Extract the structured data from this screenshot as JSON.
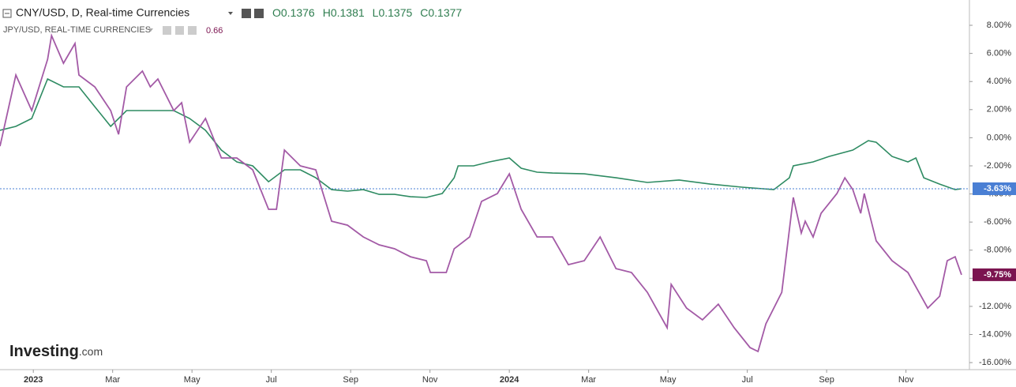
{
  "chart_data": {
    "type": "line",
    "title": "CNY/USD, D, Real-time Currencies",
    "ohlc": [
      "O0.1376",
      "H0.1381",
      "L0.1375",
      "C0.1377"
    ],
    "compare_label": "JPY/USD, REAL-TIME CURRENCIES",
    "compare_value": "0.66",
    "logo": {
      "brand": "Investing",
      "suffix": ".com"
    },
    "xlim": [
      -0.84,
      23.6
    ],
    "xticks": [
      {
        "value": 0,
        "label": "2023"
      },
      {
        "value": 2,
        "label": "Mar"
      },
      {
        "value": 4,
        "label": "May"
      },
      {
        "value": 6,
        "label": "Jul"
      },
      {
        "value": 8,
        "label": "Sep"
      },
      {
        "value": 10,
        "label": "Nov"
      },
      {
        "value": 12,
        "label": "2024"
      },
      {
        "value": 14,
        "label": "Mar"
      },
      {
        "value": 16,
        "label": "May"
      },
      {
        "value": 18,
        "label": "Jul"
      },
      {
        "value": 20,
        "label": "Sep"
      },
      {
        "value": 22,
        "label": "Nov"
      }
    ],
    "ylim": [
      -16.5,
      9.8
    ],
    "yticks": [
      {
        "value": 8,
        "label": "8.00%"
      },
      {
        "value": 6,
        "label": "6.00%"
      },
      {
        "value": 4,
        "label": "4.00%"
      },
      {
        "value": 2,
        "label": "2.00%"
      },
      {
        "value": 0,
        "label": "0.00%"
      },
      {
        "value": -2,
        "label": "-2.00%"
      },
      {
        "value": -4,
        "label": "-4.00%"
      },
      {
        "value": -6,
        "label": "-6.00%"
      },
      {
        "value": -8,
        "label": "-8.00%"
      },
      {
        "value": -10,
        "label": "-10.00%"
      },
      {
        "value": -12,
        "label": "-12.00%"
      },
      {
        "value": -14,
        "label": "-14.00%"
      },
      {
        "value": -16,
        "label": "-16.00%"
      }
    ],
    "series": [
      {
        "name": "CNY/USD",
        "color": "#2e8b62",
        "badge_color": "#4a7fd4",
        "price_label": "-3.63%",
        "x": [
          -0.84,
          -0.44,
          -0.04,
          0.16,
          0.36,
          0.76,
          1.15,
          1.55,
          1.95,
          2.35,
          2.75,
          3.14,
          3.54,
          3.94,
          4.34,
          4.74,
          5.13,
          5.53,
          5.93,
          6.33,
          6.73,
          7.12,
          7.52,
          7.92,
          8.32,
          8.72,
          9.11,
          9.51,
          9.91,
          10.31,
          10.61,
          10.71,
          11.1,
          11.5,
          12.0,
          12.3,
          12.7,
          13.09,
          13.89,
          14.69,
          15.48,
          16.28,
          17.07,
          17.87,
          18.67,
          19.06,
          19.16,
          19.66,
          20.06,
          20.66,
          21.05,
          21.25,
          21.65,
          22.05,
          22.25,
          22.45,
          22.85,
          23.24,
          23.4
        ],
        "values": [
          0.53,
          0.81,
          1.37,
          2.77,
          4.18,
          3.62,
          3.62,
          2.21,
          0.81,
          1.93,
          1.93,
          1.93,
          1.93,
          1.37,
          0.53,
          -0.88,
          -1.72,
          -2.0,
          -3.13,
          -2.28,
          -2.28,
          -2.85,
          -3.69,
          -3.8,
          -3.69,
          -4.03,
          -4.03,
          -4.2,
          -4.25,
          -3.97,
          -2.85,
          -2.0,
          -2.0,
          -1.72,
          -1.44,
          -2.17,
          -2.45,
          -2.51,
          -2.57,
          -2.85,
          -3.18,
          -3.01,
          -3.3,
          -3.52,
          -3.69,
          -2.85,
          -2.0,
          -1.72,
          -1.33,
          -0.88,
          -0.21,
          -0.32,
          -1.33,
          -1.72,
          -1.44,
          -2.85,
          -3.3,
          -3.69,
          -3.63
        ]
      },
      {
        "name": "JPY/USD",
        "color": "#a35aa6",
        "badge_color": "#7b1450",
        "price_label": "-9.75%",
        "x": [
          -0.84,
          -0.44,
          -0.04,
          0.36,
          0.46,
          0.76,
          1.05,
          1.15,
          1.55,
          1.95,
          2.15,
          2.35,
          2.75,
          2.95,
          3.14,
          3.54,
          3.74,
          3.94,
          4.34,
          4.74,
          5.13,
          5.53,
          5.93,
          6.13,
          6.33,
          6.73,
          7.12,
          7.52,
          7.92,
          8.32,
          8.72,
          9.11,
          9.51,
          9.91,
          10.01,
          10.41,
          10.61,
          11.0,
          11.3,
          11.7,
          12.0,
          12.3,
          12.7,
          13.09,
          13.49,
          13.89,
          14.29,
          14.69,
          15.08,
          15.48,
          15.98,
          16.08,
          16.47,
          16.87,
          17.27,
          17.67,
          18.07,
          18.27,
          18.47,
          18.87,
          19.16,
          19.36,
          19.46,
          19.66,
          19.86,
          20.26,
          20.46,
          20.66,
          20.86,
          20.95,
          21.25,
          21.65,
          22.05,
          22.55,
          22.85,
          23.04,
          23.24,
          23.4
        ],
        "values": [
          -0.6,
          4.46,
          1.93,
          5.58,
          7.27,
          5.3,
          6.71,
          4.46,
          3.62,
          1.93,
          0.24,
          3.62,
          4.74,
          3.62,
          4.18,
          1.93,
          2.49,
          -0.32,
          1.37,
          -1.44,
          -1.44,
          -2.28,
          -5.09,
          -5.09,
          -0.88,
          -2.0,
          -2.28,
          -5.94,
          -6.22,
          -7.06,
          -7.62,
          -7.9,
          -8.47,
          -8.75,
          -9.59,
          -9.59,
          -7.9,
          -7.06,
          -4.53,
          -3.97,
          -2.57,
          -5.09,
          -7.06,
          -7.06,
          -9.03,
          -8.75,
          -7.06,
          -9.31,
          -9.59,
          -11.0,
          -13.52,
          -10.43,
          -12.12,
          -12.96,
          -11.84,
          -13.52,
          -14.93,
          -15.21,
          -13.24,
          -11.0,
          -4.25,
          -6.78,
          -5.94,
          -7.06,
          -5.38,
          -3.97,
          -2.85,
          -3.69,
          -5.38,
          -3.97,
          -7.34,
          -8.75,
          -9.59,
          -12.12,
          -11.28,
          -8.75,
          -8.47,
          -9.75
        ]
      }
    ]
  }
}
